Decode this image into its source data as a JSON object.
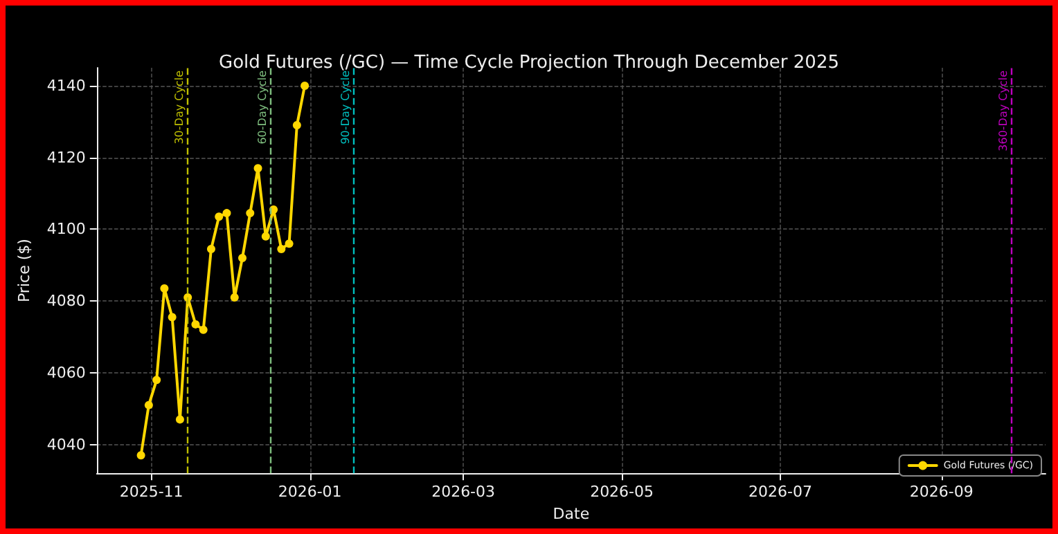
{
  "chart_data": {
    "type": "line",
    "title": "Gold Futures (/GC) — Time Cycle Projection Through December 2025",
    "xlabel": "Date",
    "ylabel": "Price ($)",
    "x": [
      "2025-10-28",
      "2025-10-31",
      "2025-11-03",
      "2025-11-06",
      "2025-11-09",
      "2025-11-12",
      "2025-11-15",
      "2025-11-18",
      "2025-11-21",
      "2025-11-24",
      "2025-11-27",
      "2025-11-30",
      "2025-12-03",
      "2025-12-06",
      "2025-12-09",
      "2025-12-12",
      "2025-12-15",
      "2025-12-18",
      "2025-12-21",
      "2025-12-24",
      "2025-12-27",
      "2025-12-30"
    ],
    "series": [
      {
        "name": "Gold Futures (/GC)",
        "color": "#ffd700",
        "values": [
          4037,
          4051,
          4058,
          4083.5,
          4075.5,
          4047,
          4081,
          4073.5,
          4072,
          4094.5,
          4103.5,
          4104.5,
          4081,
          4092,
          4104.5,
          4117,
          4098,
          4105.5,
          4094.5,
          4096,
          4129,
          4140
        ]
      }
    ],
    "xlim": [
      "2025-10-11",
      "2026-10-11"
    ],
    "xticks": [
      {
        "value": "2025-11-01",
        "label": "2025-11"
      },
      {
        "value": "2026-01-01",
        "label": "2026-01"
      },
      {
        "value": "2026-03-01",
        "label": "2026-03"
      },
      {
        "value": "2026-05-01",
        "label": "2026-05"
      },
      {
        "value": "2026-07-01",
        "label": "2026-07"
      },
      {
        "value": "2026-09-01",
        "label": "2026-09"
      }
    ],
    "ylim": [
      4032,
      4145
    ],
    "yticks": [
      4040,
      4060,
      4080,
      4100,
      4120,
      4140
    ],
    "ref_lines": [
      {
        "axis": "x",
        "value": "2025-11-15",
        "label": "30-Day Cycle",
        "color": "#bfbf00",
        "line_style": "dashed"
      },
      {
        "axis": "x",
        "value": "2025-12-17",
        "label": "60-Day Cycle",
        "color": "#7fbf7f",
        "line_style": "dashed"
      },
      {
        "axis": "x",
        "value": "2026-01-18",
        "label": "90-Day Cycle",
        "color": "#00bfbf",
        "line_style": "dashed"
      },
      {
        "axis": "x",
        "value": "2026-09-28",
        "label": "360-Day Cycle",
        "color": "#bf00bf",
        "line_style": "dashed"
      }
    ],
    "grid": true,
    "legend": "bottom right",
    "marker": "circle",
    "line_style": "solid"
  }
}
